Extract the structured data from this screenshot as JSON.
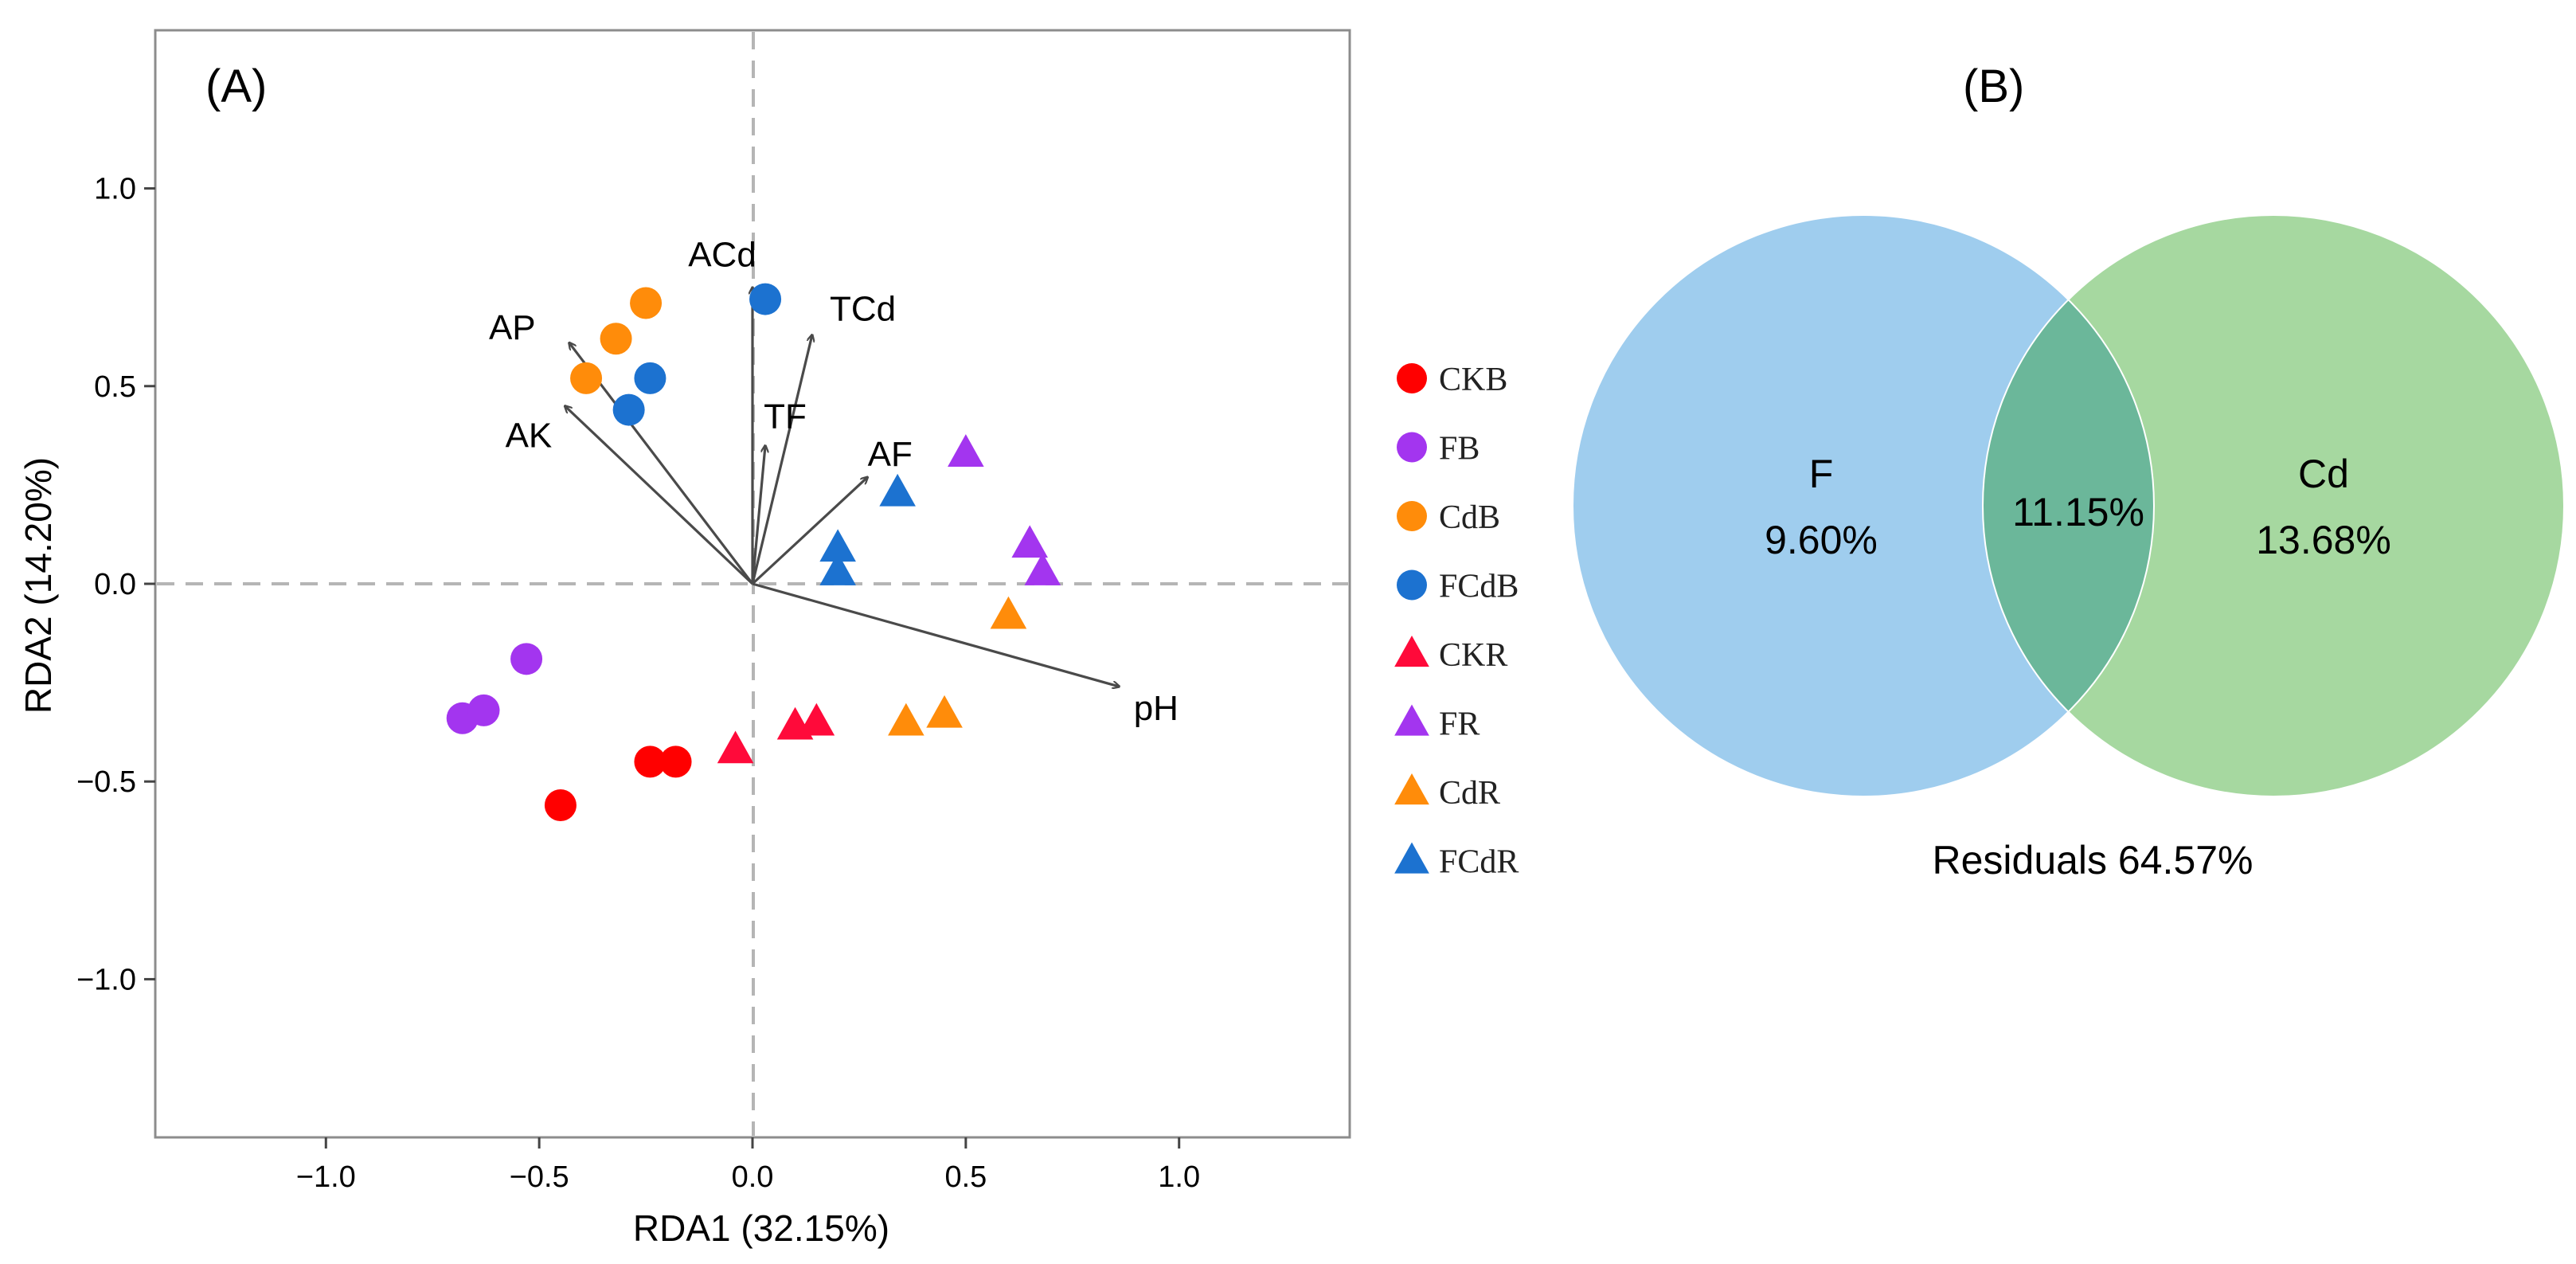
{
  "chart_data": [
    {
      "type": "scatter",
      "panel_label": "(A)",
      "xlabel": "RDA1 (32.15%)",
      "ylabel": "RDA2 (14.20%)",
      "xlim": [
        -1.4,
        1.4
      ],
      "ylim": [
        -1.4,
        1.4
      ],
      "x_ticks": [
        -1.0,
        -0.5,
        0.0,
        0.5,
        1.0
      ],
      "x_tick_labels": [
        "−1.0",
        "−0.5",
        "0.0",
        "0.5",
        "1.0"
      ],
      "y_ticks": [
        1.0,
        0.5,
        0.0,
        -0.5,
        -1.0
      ],
      "y_tick_labels": [
        "1.0",
        "0.5",
        "0.0",
        "−0.5",
        "−1.0"
      ],
      "grid": false,
      "reference_lines": "dashed at x=0 and y=0",
      "legend_position": "right",
      "series": [
        {
          "name": "CKB",
          "marker": "circle",
          "color": "#ff0000",
          "points": [
            [
              -0.45,
              -0.56
            ],
            [
              -0.24,
              -0.45
            ],
            [
              -0.18,
              -0.45
            ]
          ]
        },
        {
          "name": "FB",
          "marker": "circle",
          "color": "#a335ef",
          "points": [
            [
              -0.68,
              -0.34
            ],
            [
              -0.63,
              -0.32
            ],
            [
              -0.53,
              -0.19
            ]
          ]
        },
        {
          "name": "CdB",
          "marker": "circle",
          "color": "#ff8c0a",
          "points": [
            [
              -0.25,
              0.71
            ],
            [
              -0.32,
              0.62
            ],
            [
              -0.39,
              0.52
            ]
          ]
        },
        {
          "name": "FCdB",
          "marker": "circle",
          "color": "#1c72d0",
          "points": [
            [
              0.03,
              0.72
            ],
            [
              -0.24,
              0.52
            ],
            [
              -0.29,
              0.44
            ]
          ]
        },
        {
          "name": "CKR",
          "marker": "triangle",
          "color": "#ff0a3a",
          "points": [
            [
              -0.04,
              -0.42
            ],
            [
              0.1,
              -0.36
            ],
            [
              0.15,
              -0.35
            ]
          ]
        },
        {
          "name": "FR",
          "marker": "triangle",
          "color": "#a335ef",
          "points": [
            [
              0.5,
              0.33
            ],
            [
              0.65,
              0.1
            ],
            [
              0.68,
              0.03
            ]
          ]
        },
        {
          "name": "CdR",
          "marker": "triangle",
          "color": "#ff8c0a",
          "points": [
            [
              0.6,
              -0.08
            ],
            [
              0.36,
              -0.35
            ],
            [
              0.45,
              -0.33
            ]
          ]
        },
        {
          "name": "FCdR",
          "marker": "triangle",
          "color": "#1c72d0",
          "points": [
            [
              0.34,
              0.23
            ],
            [
              0.2,
              0.09
            ],
            [
              0.2,
              0.03
            ]
          ]
        }
      ],
      "vectors": [
        {
          "name": "ACd",
          "x": 0.0,
          "y": 0.75
        },
        {
          "name": "TCd",
          "x": 0.14,
          "y": 0.63
        },
        {
          "name": "TF",
          "x": 0.03,
          "y": 0.35
        },
        {
          "name": "AF",
          "x": 0.27,
          "y": 0.27
        },
        {
          "name": "AP",
          "x": -0.43,
          "y": 0.61
        },
        {
          "name": "AK",
          "x": -0.44,
          "y": 0.45
        },
        {
          "name": "pH",
          "x": 0.86,
          "y": -0.26
        }
      ],
      "legend": [
        "CKB",
        "FB",
        "CdB",
        "FCdB",
        "CKR",
        "FR",
        "CdR",
        "FCdR"
      ]
    },
    {
      "type": "venn",
      "panel_label": "(B)",
      "sets": [
        {
          "name": "F",
          "unique_value": "9.60%",
          "color": "#9fcdee"
        },
        {
          "name": "Cd",
          "unique_value": "13.68%",
          "color": "#a6d8a0"
        }
      ],
      "intersection": {
        "value": "11.15%",
        "color": "#6bb79a"
      },
      "residuals": "Residuals 64.57%"
    }
  ]
}
